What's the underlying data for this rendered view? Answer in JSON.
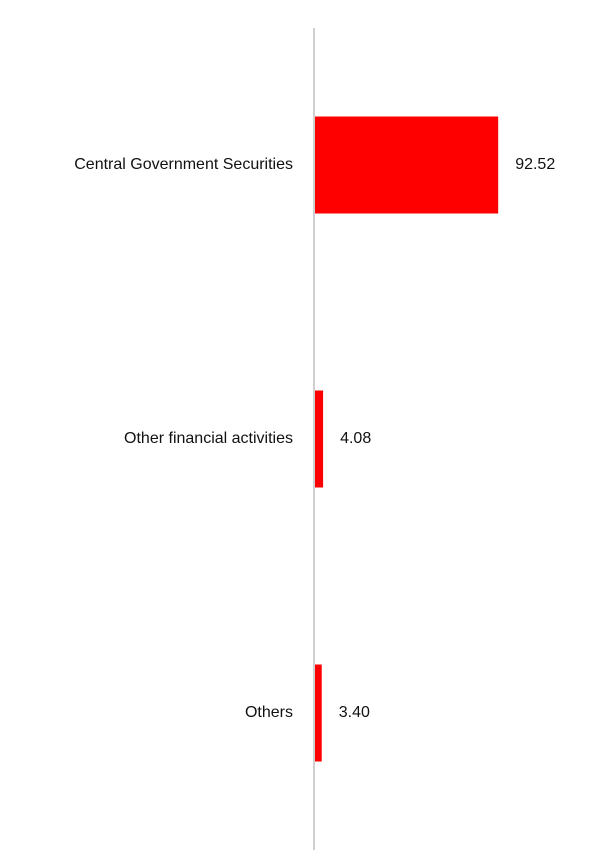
{
  "chart_data": {
    "type": "bar",
    "orientation": "horizontal",
    "title": "",
    "xlabel": "",
    "ylabel": "",
    "categories": [
      "Central Government Securities",
      "Other financial activities",
      "Others"
    ],
    "values": [
      92.52,
      4.08,
      3.4
    ],
    "value_labels": [
      "92.52",
      "4.08",
      "3.40"
    ],
    "xlim": [
      0,
      100
    ],
    "grid": false,
    "legend": "none",
    "bar_color": "#ff0000",
    "axis_color": "#d0d0d0"
  }
}
